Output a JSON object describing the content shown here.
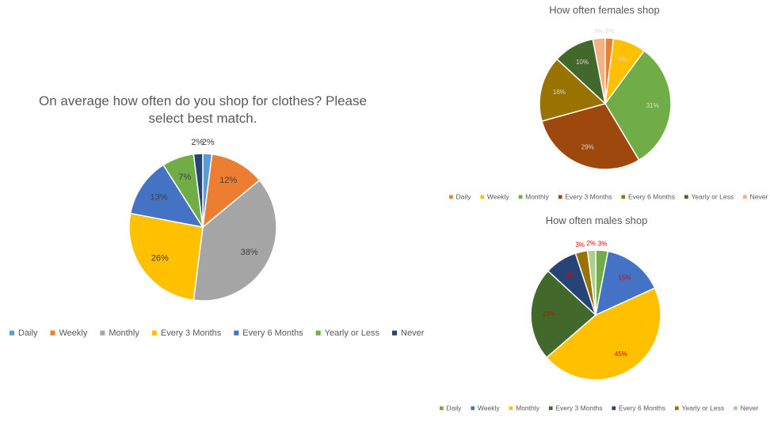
{
  "chart_data": [
    {
      "type": "pie",
      "title": "On average how often do you shop for clothes? Please select best match.",
      "categories": [
        "Daily",
        "Weekly",
        "Monthly",
        "Every 3 Months",
        "Every 6 Months",
        "Yearly or Less",
        "Never"
      ],
      "values": [
        2,
        12,
        38,
        26,
        13,
        7,
        2
      ],
      "value_labels": [
        "2%",
        "12%",
        "38%",
        "26%",
        "13%",
        "7%",
        "2%"
      ],
      "colors": [
        "#5b9bd5",
        "#ed7d31",
        "#a5a5a5",
        "#ffc000",
        "#4472c4",
        "#70ad47",
        "#264478"
      ],
      "label_color": "#404040",
      "legend": "bottom"
    },
    {
      "type": "pie",
      "title": "How often females shop",
      "categories": [
        "Daily",
        "Weekly",
        "Monthly",
        "Every 3 Months",
        "Every 6 Months",
        "Yearly or Less",
        "Never"
      ],
      "values": [
        2,
        8,
        31,
        29,
        16,
        10,
        3
      ],
      "value_labels": [
        "2%",
        "8%",
        "31%",
        "29%",
        "16%",
        "10%",
        "3%"
      ],
      "colors": [
        "#ed7d31",
        "#ffc000",
        "#70ad47",
        "#9e480e",
        "#997300",
        "#43682b",
        "#f4b183"
      ],
      "label_color": "#d9d9d9",
      "legend": "bottom"
    },
    {
      "type": "pie",
      "title": "How often males shop",
      "categories": [
        "Daily",
        "Weekly",
        "Monthly",
        "Every 3 Months",
        "Every 6 Months",
        "Yearly or Less",
        "Never"
      ],
      "values": [
        3,
        15,
        45,
        23,
        8,
        3,
        2
      ],
      "value_labels": [
        "3%",
        "15%",
        "45%",
        "23%",
        "8%",
        "3%",
        "2%"
      ],
      "colors": [
        "#70ad47",
        "#4472c4",
        "#ffc000",
        "#43682b",
        "#264478",
        "#997300",
        "#a9d18e"
      ],
      "label_color": "#e00000",
      "legend": "bottom"
    }
  ]
}
